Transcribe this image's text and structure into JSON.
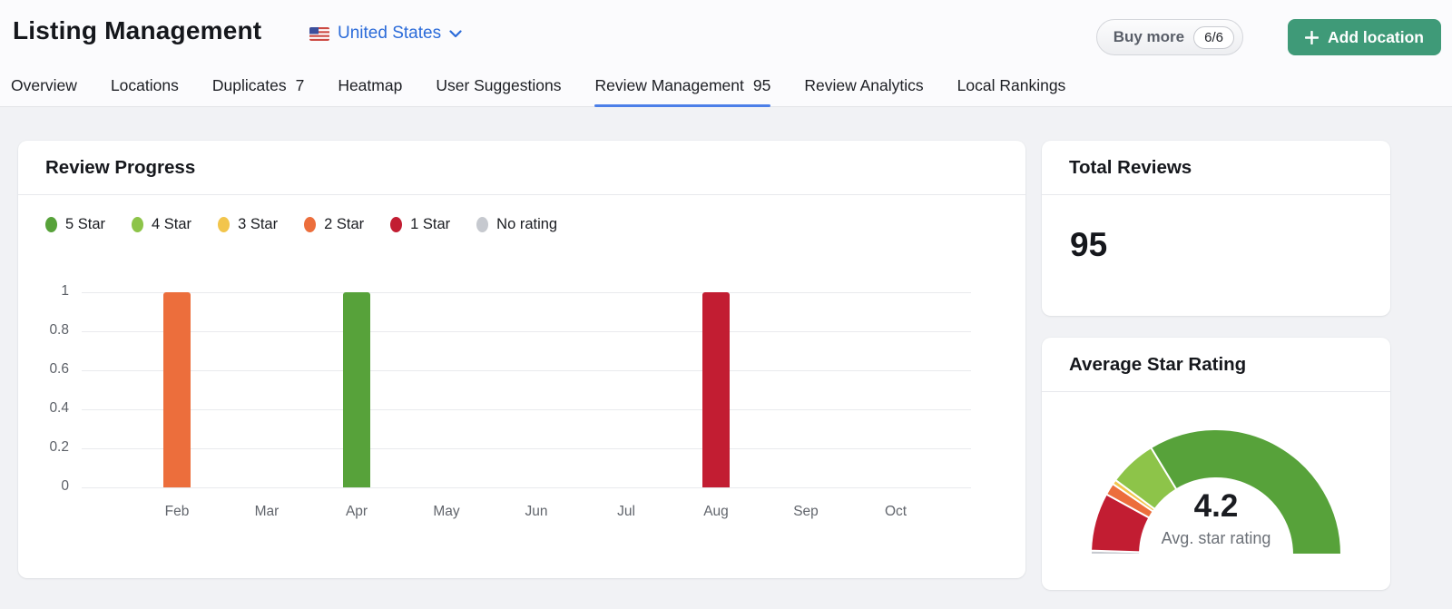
{
  "header": {
    "title": "Listing Management",
    "country_selector": {
      "label": "United States"
    },
    "buy_more_button": {
      "label": "Buy more",
      "badge": "6/6"
    },
    "add_location_button": {
      "label": "Add location",
      "plus": "+"
    }
  },
  "tabs": [
    {
      "label": "Overview"
    },
    {
      "label": "Locations"
    },
    {
      "label": "Duplicates",
      "count": "7"
    },
    {
      "label": "Heatmap"
    },
    {
      "label": "User Suggestions"
    },
    {
      "label": "Review Management",
      "count": "95",
      "active": true
    },
    {
      "label": "Review Analytics"
    },
    {
      "label": "Local Rankings"
    }
  ],
  "cards": {
    "review_progress": {
      "title": "Review Progress"
    },
    "total_reviews": {
      "title": "Total Reviews",
      "value": "95"
    },
    "average_star_rating": {
      "title": "Average Star Rating"
    }
  },
  "colors": {
    "accent_blue": "#2B6BD9",
    "active_tab_underline": "#4C7FE8",
    "add_location_green": "#3F9A78",
    "star5_green": "#57A23A",
    "star4_light_green": "#8DC449",
    "star3_yellow": "#F2C54C",
    "star2_orange": "#EC6E3C",
    "star1_red": "#C21D32",
    "no_rating_gray": "#C6C9CF"
  },
  "chart_data": [
    {
      "type": "bar",
      "title": "Review Progress",
      "categories": [
        "Feb",
        "Mar",
        "Apr",
        "May",
        "Jun",
        "Jul",
        "Aug",
        "Sep",
        "Oct"
      ],
      "series": [
        {
          "name": "5 Star",
          "color": "#57A23A",
          "values": [
            0,
            0,
            1,
            0,
            0,
            0,
            0,
            0,
            0
          ]
        },
        {
          "name": "4 Star",
          "color": "#8DC449",
          "values": [
            0,
            0,
            0,
            0,
            0,
            0,
            0,
            0,
            0
          ]
        },
        {
          "name": "3 Star",
          "color": "#F2C54C",
          "values": [
            0,
            0,
            0,
            0,
            0,
            0,
            0,
            0,
            0
          ]
        },
        {
          "name": "2 Star",
          "color": "#EC6E3C",
          "values": [
            1,
            0,
            0,
            0,
            0,
            0,
            0,
            0,
            0
          ]
        },
        {
          "name": "1 Star",
          "color": "#C21D32",
          "values": [
            0,
            0,
            0,
            0,
            0,
            0,
            1,
            0,
            0
          ]
        },
        {
          "name": "No rating",
          "color": "#C6C9CF",
          "values": [
            0,
            0,
            0,
            0,
            0,
            0,
            0,
            0,
            0
          ]
        }
      ],
      "xlabel": "",
      "ylabel": "",
      "ylim": [
        0,
        1
      ],
      "yticks": [
        0,
        0.2,
        0.4,
        0.6,
        0.8,
        1
      ],
      "grid": true,
      "legend_position": "top"
    },
    {
      "type": "pie",
      "subtype": "half-donut-gauge",
      "title": "Average Star Rating",
      "center_value": "4.2",
      "center_caption": "Avg. star rating",
      "segments": [
        {
          "name": "No rating",
          "color": "#C6C9CF",
          "fraction": 0.01
        },
        {
          "name": "1 Star",
          "color": "#C21D32",
          "fraction": 0.15
        },
        {
          "name": "2 Star",
          "color": "#EC6E3C",
          "fraction": 0.031
        },
        {
          "name": "3 Star",
          "color": "#F2C54C",
          "fraction": 0.012
        },
        {
          "name": "4 Star",
          "color": "#8DC449",
          "fraction": 0.123
        },
        {
          "name": "5 Star",
          "color": "#57A23A",
          "fraction": 0.674
        }
      ]
    }
  ]
}
